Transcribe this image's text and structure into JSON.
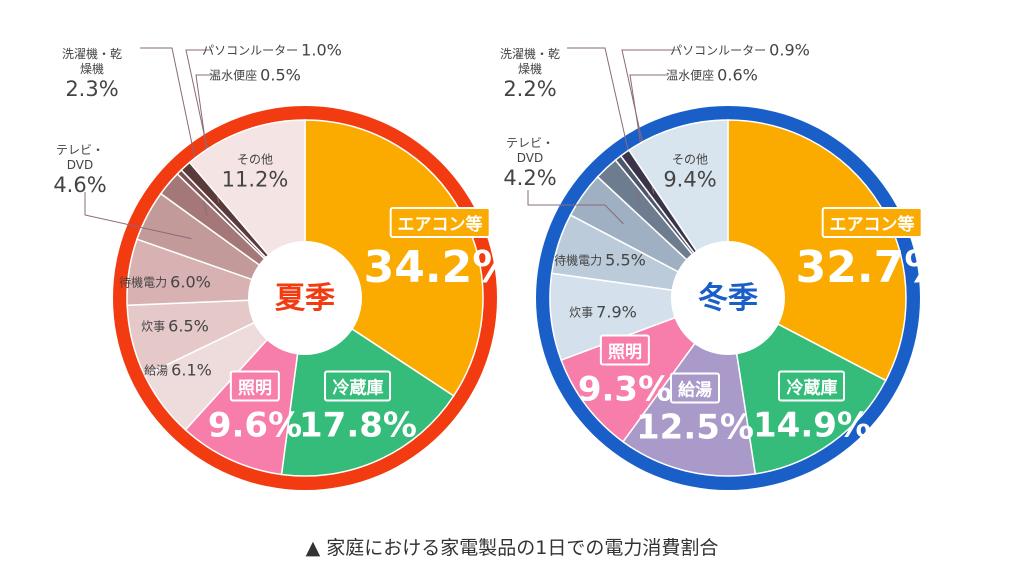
{
  "chart_data": [
    {
      "type": "pie",
      "title": "夏季",
      "ring_color": "#f23b10",
      "categories": [
        "エアコン等",
        "冷蔵庫",
        "照明",
        "給湯",
        "炊事",
        "待機電力",
        "テレビ・DVD",
        "洗濯機・乾燥機",
        "温水便座",
        "パソコンルーター",
        "その他"
      ],
      "values": [
        34.2,
        17.8,
        9.6,
        6.1,
        6.5,
        6.0,
        4.6,
        2.3,
        0.5,
        1.0,
        11.2
      ],
      "value_labels": [
        "34.2%",
        "17.8%",
        "9.6%",
        "6.1%",
        "6.5%",
        "6.0%",
        "4.6%",
        "2.3%",
        "0.5%",
        "1.0%",
        "11.2%"
      ],
      "colors": [
        "#fbab00",
        "#35bb7a",
        "#f77daa",
        "#eedcdc",
        "#e5c8c8",
        "#d8b2b2",
        "#c39a9a",
        "#a47878",
        "#7a5050",
        "#5b3a3a",
        "#f4e4e4"
      ]
    },
    {
      "type": "pie",
      "title": "冬季",
      "ring_color": "#1a5fc8",
      "categories": [
        "エアコン等",
        "冷蔵庫",
        "給湯",
        "照明",
        "炊事",
        "待機電力",
        "テレビ・DVD",
        "洗濯機・乾燥機",
        "温水便座",
        "パソコンルーター",
        "その他"
      ],
      "values": [
        32.7,
        14.9,
        12.5,
        9.3,
        7.9,
        5.5,
        4.2,
        2.2,
        0.6,
        0.9,
        9.4
      ],
      "value_labels": [
        "32.7%",
        "14.9%",
        "12.5%",
        "9.3%",
        "7.9%",
        "5.5%",
        "4.2%",
        "2.2%",
        "0.6%",
        "0.9%",
        "9.4%"
      ],
      "colors": [
        "#fbab00",
        "#35bb7a",
        "#a99ac9",
        "#f77daa",
        "#d4e0ec",
        "#bccbd9",
        "#9eb0c2",
        "#6e7c90",
        "#4d566a",
        "#39344a",
        "#d9e5ee"
      ]
    }
  ],
  "caption": "▲ 家庭における家電製品の1日での電力消費割合"
}
